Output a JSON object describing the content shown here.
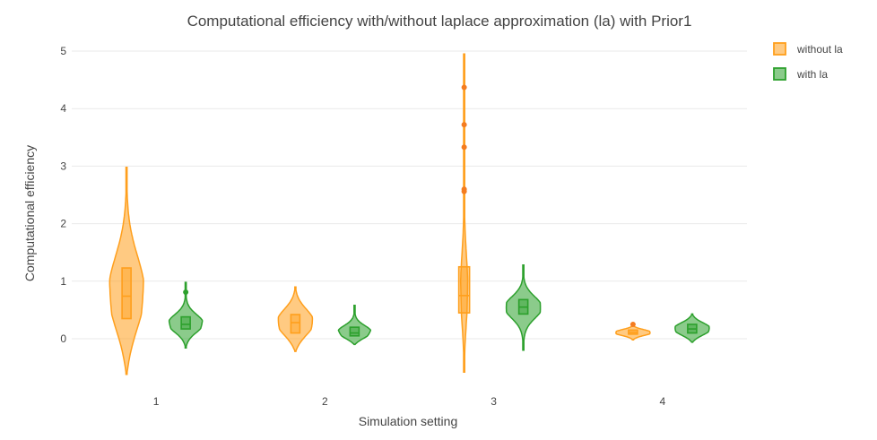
{
  "chart_data": {
    "type": "violin",
    "title": "Computational efficiency with/without laplace approximation (la) with Prior1",
    "xlabel": "Simulation setting",
    "ylabel": "Computational efficiency",
    "categories": [
      "1",
      "2",
      "3",
      "4"
    ],
    "yticks": [
      "0",
      "1",
      "2",
      "3",
      "4",
      "5"
    ],
    "ylim": [
      -0.7,
      5.2
    ],
    "grid": true,
    "legend_position": "top-right",
    "series": [
      {
        "name": "without la",
        "color": "#ff9f1c",
        "groups": [
          {
            "category": "1",
            "min": -0.62,
            "max": 2.98,
            "q1": 0.35,
            "median": 0.74,
            "q3": 1.23,
            "outliers": []
          },
          {
            "category": "2",
            "min": -0.22,
            "max": 0.9,
            "q1": 0.1,
            "median": 0.28,
            "q3": 0.42,
            "outliers": []
          },
          {
            "category": "3",
            "min": -0.58,
            "max": 4.95,
            "q1": 0.45,
            "median": 0.75,
            "q3": 1.25,
            "outliers": [
              4.37,
              3.72,
              3.33,
              2.6,
              2.56
            ]
          },
          {
            "category": "4",
            "min": -0.02,
            "max": 0.23,
            "q1": 0.08,
            "median": 0.11,
            "q3": 0.15,
            "outliers": [
              0.25
            ]
          }
        ]
      },
      {
        "name": "with la",
        "color": "#2ca02c",
        "groups": [
          {
            "category": "1",
            "min": -0.16,
            "max": 0.98,
            "q1": 0.17,
            "median": 0.25,
            "q3": 0.38,
            "outliers": [
              0.81
            ]
          },
          {
            "category": "2",
            "min": -0.1,
            "max": 0.58,
            "q1": 0.05,
            "median": 0.1,
            "q3": 0.2,
            "outliers": []
          },
          {
            "category": "3",
            "min": -0.2,
            "max": 1.28,
            "q1": 0.43,
            "median": 0.55,
            "q3": 0.68,
            "outliers": []
          },
          {
            "category": "4",
            "min": -0.06,
            "max": 0.43,
            "q1": 0.1,
            "median": 0.17,
            "q3": 0.25,
            "outliers": []
          }
        ]
      }
    ]
  }
}
